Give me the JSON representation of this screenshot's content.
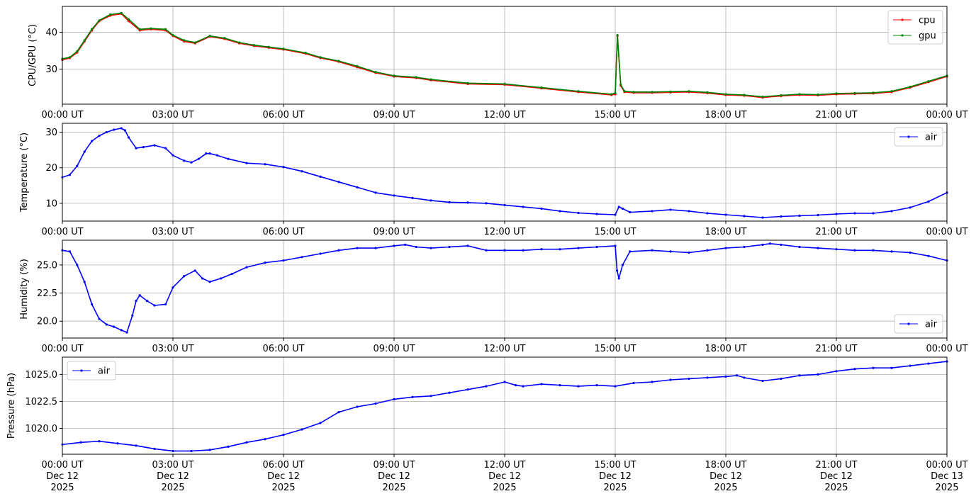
{
  "chart_data": [
    {
      "type": "line",
      "x_unit": "hours since 00:00 UT Dec 12 2025",
      "ylabel": "CPU/GPU (°C)",
      "ylim": [
        20.5,
        47.0
      ],
      "yticks": [
        30,
        40
      ],
      "xticks": [
        0,
        3,
        6,
        9,
        12,
        15,
        18,
        21,
        24
      ],
      "xtick_labels": [
        "00:00 UT",
        "03:00 UT",
        "06:00 UT",
        "09:00 UT",
        "12:00 UT",
        "15:00 UT",
        "18:00 UT",
        "21:00 UT",
        "00:00 UT"
      ],
      "grid": true,
      "legend_position": "top-right",
      "series": [
        {
          "name": "cpu",
          "color": "#ff0000",
          "x": [
            0,
            0.2,
            0.4,
            0.6,
            0.8,
            1.0,
            1.3,
            1.6,
            1.8,
            2.1,
            2.4,
            2.8,
            3.0,
            3.3,
            3.6,
            4.0,
            4.4,
            4.8,
            5.2,
            5.6,
            6.0,
            6.6,
            7.0,
            7.5,
            8.0,
            8.5,
            9.0,
            9.6,
            10.0,
            11.0,
            12.0,
            13.0,
            14.0,
            14.9,
            15.0,
            15.06,
            15.15,
            15.25,
            15.5,
            16.0,
            16.5,
            17.0,
            17.5,
            18.0,
            18.5,
            19.0,
            19.5,
            20.0,
            20.5,
            21.0,
            21.5,
            22.0,
            22.5,
            23.0,
            23.5,
            24.0
          ],
          "y": [
            32.5,
            33.0,
            34.5,
            37.5,
            40.5,
            43.0,
            44.5,
            45.0,
            43.0,
            40.5,
            40.8,
            40.5,
            39.0,
            37.5,
            37.0,
            38.8,
            38.2,
            37.0,
            36.3,
            35.8,
            35.3,
            34.2,
            33.0,
            32.0,
            30.5,
            29.0,
            28.0,
            27.6,
            27.0,
            26.0,
            25.8,
            24.8,
            23.8,
            23.0,
            23.2,
            39.0,
            25.5,
            23.8,
            23.6,
            23.6,
            23.7,
            23.8,
            23.5,
            23.0,
            22.8,
            22.3,
            22.7,
            23.0,
            22.9,
            23.2,
            23.3,
            23.4,
            23.8,
            25.0,
            26.5,
            28.0
          ]
        },
        {
          "name": "gpu",
          "color": "#008000",
          "x": [
            0,
            0.2,
            0.4,
            0.6,
            0.8,
            1.0,
            1.3,
            1.6,
            1.8,
            2.1,
            2.4,
            2.8,
            3.0,
            3.3,
            3.6,
            4.0,
            4.4,
            4.8,
            5.2,
            5.6,
            6.0,
            6.6,
            7.0,
            7.5,
            8.0,
            8.5,
            9.0,
            9.6,
            10.0,
            11.0,
            12.0,
            13.0,
            14.0,
            14.9,
            15.0,
            15.06,
            15.15,
            15.25,
            15.5,
            16.0,
            16.5,
            17.0,
            17.5,
            18.0,
            18.5,
            19.0,
            19.5,
            20.0,
            20.5,
            21.0,
            21.5,
            22.0,
            22.5,
            23.0,
            23.5,
            24.0
          ],
          "y": [
            32.8,
            33.2,
            34.8,
            37.8,
            40.8,
            43.2,
            44.8,
            45.2,
            43.5,
            40.8,
            41.0,
            40.8,
            39.2,
            37.8,
            37.2,
            39.0,
            38.4,
            37.2,
            36.5,
            36.0,
            35.5,
            34.4,
            33.2,
            32.2,
            30.8,
            29.2,
            28.2,
            27.8,
            27.2,
            26.2,
            26.0,
            25.0,
            24.0,
            23.2,
            23.5,
            39.2,
            25.8,
            24.0,
            23.8,
            23.8,
            23.9,
            24.0,
            23.7,
            23.2,
            23.0,
            22.5,
            22.9,
            23.2,
            23.1,
            23.4,
            23.5,
            23.6,
            24.0,
            25.2,
            26.7,
            28.2
          ]
        }
      ]
    },
    {
      "type": "line",
      "x_unit": "hours since 00:00 UT Dec 12 2025",
      "ylabel": "Temperature (°C)",
      "ylim": [
        5.0,
        32.5
      ],
      "yticks": [
        10,
        20,
        30
      ],
      "xticks": [
        0,
        3,
        6,
        9,
        12,
        15,
        18,
        21,
        24
      ],
      "xtick_labels": [
        "00:00 UT",
        "03:00 UT",
        "06:00 UT",
        "09:00 UT",
        "12:00 UT",
        "15:00 UT",
        "18:00 UT",
        "21:00 UT",
        "00:00 UT"
      ],
      "grid": true,
      "legend_position": "top-right",
      "series": [
        {
          "name": "air",
          "color": "#0000ff",
          "x": [
            0,
            0.2,
            0.4,
            0.6,
            0.8,
            1.0,
            1.2,
            1.4,
            1.6,
            1.7,
            1.8,
            2.0,
            2.2,
            2.5,
            2.8,
            3.0,
            3.3,
            3.5,
            3.7,
            3.9,
            4.0,
            4.2,
            4.5,
            5.0,
            5.5,
            6.0,
            6.5,
            7.0,
            7.5,
            8.0,
            8.5,
            9.0,
            9.5,
            10.0,
            10.5,
            11.0,
            11.5,
            12.0,
            12.5,
            13.0,
            13.5,
            14.0,
            14.5,
            15.0,
            15.1,
            15.2,
            15.4,
            16.0,
            16.5,
            17.0,
            17.5,
            18.0,
            18.5,
            19.0,
            19.5,
            20.0,
            20.5,
            21.0,
            21.5,
            22.0,
            22.5,
            23.0,
            23.5,
            24.0
          ],
          "y": [
            17.3,
            18.0,
            20.5,
            24.5,
            27.5,
            29.0,
            30.0,
            30.7,
            31.1,
            30.5,
            28.5,
            25.5,
            25.8,
            26.3,
            25.5,
            23.5,
            22.0,
            21.5,
            22.5,
            24.0,
            24.0,
            23.5,
            22.5,
            21.3,
            21.0,
            20.2,
            19.0,
            17.5,
            16.0,
            14.5,
            13.0,
            12.2,
            11.5,
            10.8,
            10.3,
            10.2,
            10.0,
            9.5,
            9.0,
            8.5,
            7.8,
            7.3,
            7.0,
            6.8,
            9.0,
            8.5,
            7.5,
            7.8,
            8.2,
            7.8,
            7.2,
            6.8,
            6.4,
            6.0,
            6.3,
            6.5,
            6.7,
            7.0,
            7.2,
            7.2,
            7.8,
            8.8,
            10.5,
            13.0
          ]
        }
      ]
    },
    {
      "type": "line",
      "x_unit": "hours since 00:00 UT Dec 12 2025",
      "ylabel": "Humidity (%)",
      "ylim": [
        18.5,
        27.2
      ],
      "yticks": [
        20.0,
        22.5,
        25.0
      ],
      "ytick_labels": [
        "20.0",
        "22.5",
        "25.0"
      ],
      "xticks": [
        0,
        3,
        6,
        9,
        12,
        15,
        18,
        21,
        24
      ],
      "xtick_labels": [
        "00:00 UT",
        "03:00 UT",
        "06:00 UT",
        "09:00 UT",
        "12:00 UT",
        "15:00 UT",
        "18:00 UT",
        "21:00 UT",
        "00:00 UT"
      ],
      "grid": true,
      "legend_position": "bottom-right",
      "series": [
        {
          "name": "air",
          "color": "#0000ff",
          "x": [
            0,
            0.2,
            0.4,
            0.6,
            0.8,
            1.0,
            1.2,
            1.4,
            1.6,
            1.75,
            1.9,
            2.0,
            2.1,
            2.3,
            2.5,
            2.8,
            3.0,
            3.3,
            3.6,
            3.8,
            4.0,
            4.3,
            4.6,
            5.0,
            5.5,
            6.0,
            6.5,
            7.0,
            7.5,
            8.0,
            8.5,
            9.0,
            9.3,
            9.6,
            10.0,
            10.5,
            11.0,
            11.5,
            12.0,
            12.5,
            13.0,
            13.5,
            14.0,
            14.5,
            15.0,
            15.05,
            15.1,
            15.2,
            15.4,
            16.0,
            16.5,
            17.0,
            17.5,
            18.0,
            18.5,
            19.0,
            19.2,
            19.5,
            20.0,
            20.5,
            21.0,
            21.5,
            22.0,
            22.5,
            23.0,
            23.5,
            24.0
          ],
          "y": [
            26.3,
            26.2,
            25.0,
            23.5,
            21.5,
            20.2,
            19.7,
            19.5,
            19.2,
            19.0,
            20.5,
            21.8,
            22.3,
            21.8,
            21.4,
            21.5,
            23.0,
            24.0,
            24.5,
            23.8,
            23.5,
            23.8,
            24.2,
            24.8,
            25.2,
            25.4,
            25.7,
            26.0,
            26.3,
            26.5,
            26.5,
            26.7,
            26.8,
            26.6,
            26.5,
            26.6,
            26.7,
            26.3,
            26.3,
            26.3,
            26.4,
            26.4,
            26.5,
            26.6,
            26.7,
            24.5,
            23.8,
            25.0,
            26.2,
            26.3,
            26.2,
            26.1,
            26.3,
            26.5,
            26.6,
            26.8,
            26.9,
            26.8,
            26.6,
            26.5,
            26.4,
            26.3,
            26.3,
            26.2,
            26.1,
            25.8,
            25.4
          ]
        }
      ]
    },
    {
      "type": "line",
      "x_unit": "hours since 00:00 UT Dec 12 2025",
      "ylabel": "Pressure (hPa)",
      "ylim": [
        1017.6,
        1026.6
      ],
      "yticks": [
        1020.0,
        1022.5,
        1025.0
      ],
      "ytick_labels": [
        "1020.0",
        "1022.5",
        "1025.0"
      ],
      "xticks": [
        0,
        3,
        6,
        9,
        12,
        15,
        18,
        21,
        24
      ],
      "xtick_labels": [
        "00:00 UT\nDec 12\n2025",
        "03:00 UT\nDec 12\n2025",
        "06:00 UT\nDec 12\n2025",
        "09:00 UT\nDec 12\n2025",
        "12:00 UT\nDec 12\n2025",
        "15:00 UT\nDec 12\n2025",
        "18:00 UT\nDec 12\n2025",
        "21:00 UT\nDec 12\n2025",
        "00:00 UT\nDec 13\n2025"
      ],
      "grid": true,
      "legend_position": "top-left",
      "series": [
        {
          "name": "air",
          "color": "#0000ff",
          "x": [
            0,
            0.5,
            1.0,
            1.5,
            2.0,
            2.5,
            3.0,
            3.5,
            4.0,
            4.5,
            5.0,
            5.5,
            6.0,
            6.5,
            7.0,
            7.5,
            8.0,
            8.5,
            9.0,
            9.5,
            10.0,
            10.5,
            11.0,
            11.5,
            12.0,
            12.3,
            12.5,
            13.0,
            13.5,
            14.0,
            14.5,
            15.0,
            15.5,
            16.0,
            16.5,
            17.0,
            17.5,
            18.0,
            18.3,
            18.5,
            19.0,
            19.5,
            20.0,
            20.5,
            21.0,
            21.5,
            22.0,
            22.5,
            23.0,
            23.5,
            24.0
          ],
          "y": [
            1018.5,
            1018.7,
            1018.8,
            1018.6,
            1018.4,
            1018.1,
            1017.9,
            1017.9,
            1018.0,
            1018.3,
            1018.7,
            1019.0,
            1019.4,
            1019.9,
            1020.5,
            1021.5,
            1022.0,
            1022.3,
            1022.7,
            1022.9,
            1023.0,
            1023.3,
            1023.6,
            1023.9,
            1024.3,
            1024.0,
            1023.9,
            1024.1,
            1024.0,
            1023.9,
            1024.0,
            1023.9,
            1024.2,
            1024.3,
            1024.5,
            1024.6,
            1024.7,
            1024.8,
            1024.9,
            1024.7,
            1024.4,
            1024.6,
            1024.9,
            1025.0,
            1025.3,
            1025.5,
            1025.6,
            1025.6,
            1025.8,
            1026.0,
            1026.2
          ]
        }
      ]
    }
  ]
}
